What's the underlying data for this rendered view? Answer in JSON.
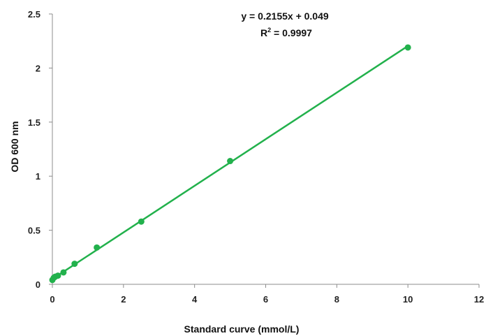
{
  "chart_data": {
    "type": "scatter",
    "xlabel": "Standard curve (mmol/L)",
    "ylabel": "OD 600 nm",
    "xlim": [
      0,
      12
    ],
    "ylim": [
      0,
      2.5
    ],
    "x_ticks": [
      "0",
      "2",
      "4",
      "6",
      "8",
      "10",
      "12"
    ],
    "y_ticks": [
      "0",
      "0.5",
      "1",
      "1.5",
      "2",
      "2.5"
    ],
    "grid": false,
    "series": [
      {
        "x": [
          0,
          0.039,
          0.078,
          0.156,
          0.3125,
          0.625,
          1.25,
          2.5,
          5,
          10
        ],
        "y": [
          0.04,
          0.06,
          0.07,
          0.08,
          0.11,
          0.19,
          0.34,
          0.58,
          1.14,
          2.19
        ],
        "color": "#22b14c"
      }
    ],
    "trendline": {
      "slope": 0.2155,
      "intercept": 0.049,
      "x_range": [
        0,
        10
      ],
      "color": "#22b14c"
    },
    "equation_label": "y = 0.2155x + 0.049",
    "r2_label_prefix": "R",
    "r2_label_sup": "2",
    "r2_label_value": " = 0.9997"
  }
}
